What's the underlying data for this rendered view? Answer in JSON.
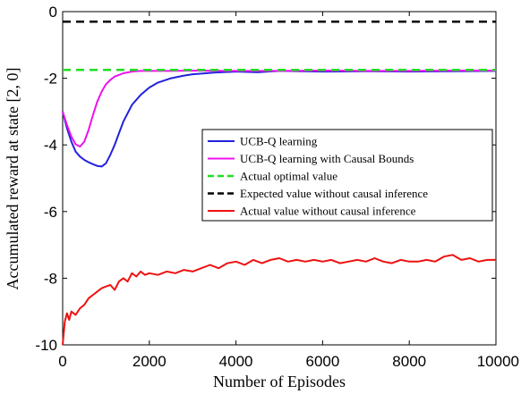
{
  "chart_data": {
    "type": "line",
    "xlabel": "Number of Episodes",
    "ylabel": "Accumulated reward at state [2, 0]",
    "xlim": [
      0,
      10000
    ],
    "ylim": [
      -10,
      0
    ],
    "x_ticks": [
      0,
      2000,
      4000,
      6000,
      8000,
      10000
    ],
    "x_tick_labels": [
      "0",
      "2000",
      "4000",
      "6000",
      "8000",
      "10000"
    ],
    "y_ticks": [
      0,
      -2,
      -4,
      -6,
      -8,
      -10
    ],
    "y_tick_labels": [
      "0",
      "-2",
      "-4",
      "-6",
      "-8",
      "-10"
    ],
    "grid": false,
    "legend_position": "center-right",
    "series": [
      {
        "name": "UCB-Q learning",
        "color": "#2222dd",
        "style": "solid",
        "x": [
          0,
          100,
          200,
          300,
          400,
          500,
          600,
          700,
          800,
          900,
          1000,
          1100,
          1200,
          1300,
          1400,
          1600,
          1800,
          2000,
          2200,
          2500,
          2800,
          3000,
          3500,
          4000,
          4500,
          5000,
          6000,
          7000,
          8000,
          9000,
          10000
        ],
        "values": [
          -3.0,
          -3.5,
          -3.9,
          -4.2,
          -4.35,
          -4.45,
          -4.52,
          -4.58,
          -4.63,
          -4.65,
          -4.55,
          -4.3,
          -4.0,
          -3.65,
          -3.3,
          -2.8,
          -2.5,
          -2.28,
          -2.13,
          -2.0,
          -1.92,
          -1.88,
          -1.83,
          -1.8,
          -1.82,
          -1.78,
          -1.8,
          -1.79,
          -1.8,
          -1.79,
          -1.78
        ]
      },
      {
        "name": "UCB-Q learning with Causal Bounds",
        "color": "#ee11ee",
        "style": "solid",
        "x": [
          0,
          100,
          200,
          300,
          400,
          500,
          600,
          700,
          800,
          900,
          1000,
          1100,
          1200,
          1400,
          1600,
          1800,
          2000,
          2500,
          3000,
          4000,
          5000,
          6000,
          7000,
          8000,
          9000,
          10000
        ],
        "values": [
          -3.0,
          -3.4,
          -3.75,
          -3.98,
          -4.05,
          -3.9,
          -3.55,
          -3.1,
          -2.7,
          -2.4,
          -2.18,
          -2.05,
          -1.95,
          -1.85,
          -1.8,
          -1.78,
          -1.78,
          -1.78,
          -1.77,
          -1.78,
          -1.78,
          -1.77,
          -1.78,
          -1.78,
          -1.77,
          -1.77
        ]
      },
      {
        "name": "Actual optimal value",
        "color": "#22dd22",
        "style": "dashed",
        "x": [
          0,
          10000
        ],
        "values": [
          -1.75,
          -1.75
        ]
      },
      {
        "name": "Expected value without causal inference",
        "color": "#000000",
        "style": "dashed",
        "x": [
          0,
          10000
        ],
        "values": [
          -0.3,
          -0.3
        ]
      },
      {
        "name": "Actual value without causal inference",
        "color": "#ee1111",
        "style": "solid",
        "x": [
          0,
          50,
          100,
          150,
          200,
          300,
          400,
          500,
          600,
          700,
          800,
          900,
          1000,
          1100,
          1200,
          1300,
          1400,
          1500,
          1600,
          1700,
          1800,
          1900,
          2000,
          2200,
          2400,
          2600,
          2800,
          3000,
          3200,
          3400,
          3600,
          3800,
          4000,
          4200,
          4400,
          4600,
          4800,
          5000,
          5200,
          5400,
          5600,
          5800,
          6000,
          6200,
          6400,
          6600,
          6800,
          7000,
          7200,
          7400,
          7600,
          7800,
          8000,
          8200,
          8400,
          8600,
          8800,
          9000,
          9200,
          9400,
          9600,
          9800,
          10000
        ],
        "values": [
          -10.0,
          -9.3,
          -9.05,
          -9.25,
          -9.0,
          -9.1,
          -8.9,
          -8.8,
          -8.6,
          -8.5,
          -8.4,
          -8.3,
          -8.25,
          -8.2,
          -8.35,
          -8.1,
          -8.0,
          -8.1,
          -7.85,
          -7.95,
          -7.8,
          -7.9,
          -7.85,
          -7.9,
          -7.8,
          -7.85,
          -7.75,
          -7.8,
          -7.7,
          -7.6,
          -7.7,
          -7.55,
          -7.5,
          -7.6,
          -7.45,
          -7.55,
          -7.45,
          -7.4,
          -7.5,
          -7.45,
          -7.5,
          -7.45,
          -7.5,
          -7.45,
          -7.55,
          -7.5,
          -7.45,
          -7.5,
          -7.4,
          -7.5,
          -7.55,
          -7.45,
          -7.5,
          -7.5,
          -7.45,
          -7.5,
          -7.35,
          -7.3,
          -7.45,
          -7.4,
          -7.5,
          -7.45,
          -7.45
        ]
      }
    ]
  }
}
